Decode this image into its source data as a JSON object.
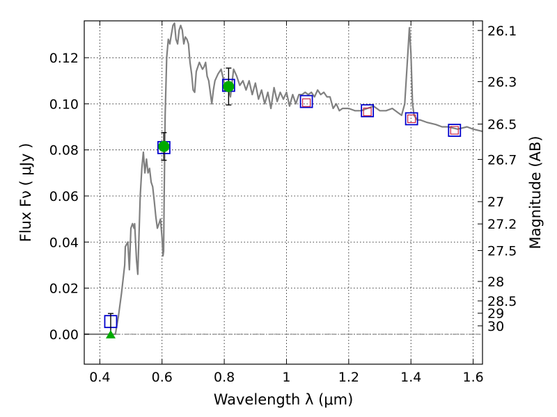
{
  "chart_data": {
    "type": "line",
    "xlabel": "Wavelength  λ (μm)",
    "ylabel": "Flux  Fν  ( μJy )",
    "y2label": "Magnitude (AB)",
    "xlim": [
      0.35,
      1.63
    ],
    "ylim": [
      -0.013,
      0.136
    ],
    "grid": true,
    "legend": "none",
    "x_ticks": [
      0.4,
      0.6,
      0.8,
      1.0,
      1.2,
      1.4,
      1.6
    ],
    "x_tick_labels": [
      "0.4",
      "0.6",
      "0.8",
      "1",
      "1.2",
      "1.4",
      "1.6"
    ],
    "y_ticks": [
      0.0,
      0.02,
      0.04,
      0.06,
      0.08,
      0.1,
      0.12
    ],
    "y_tick_labels": [
      "0.00",
      "0.02",
      "0.04",
      "0.06",
      "0.08",
      "0.10",
      "0.12"
    ],
    "mag_ticks": [
      26.1,
      26.3,
      26.5,
      26.7,
      27,
      27.2,
      27.5,
      28,
      28.5,
      29,
      30
    ],
    "mag_tick_labels": [
      "26.1",
      "26.3",
      "26.5",
      "26.7",
      "27",
      "27.2",
      "27.5",
      "28",
      "28.5",
      "29",
      "30"
    ],
    "series": [
      {
        "kind": "model_sed",
        "color": "#808080",
        "x": [
          0.35,
          0.45,
          0.46,
          0.47,
          0.48,
          0.482,
          0.49,
          0.495,
          0.5,
          0.505,
          0.51,
          0.512,
          0.518,
          0.522,
          0.53,
          0.535,
          0.54,
          0.545,
          0.55,
          0.555,
          0.56,
          0.565,
          0.57,
          0.575,
          0.58,
          0.585,
          0.59,
          0.595,
          0.6,
          0.603,
          0.605,
          0.607,
          0.61,
          0.615,
          0.62,
          0.625,
          0.63,
          0.635,
          0.64,
          0.645,
          0.65,
          0.655,
          0.66,
          0.665,
          0.67,
          0.675,
          0.68,
          0.685,
          0.69,
          0.695,
          0.7,
          0.705,
          0.71,
          0.72,
          0.73,
          0.735,
          0.74,
          0.745,
          0.75,
          0.755,
          0.76,
          0.765,
          0.77,
          0.78,
          0.79,
          0.8,
          0.81,
          0.82,
          0.83,
          0.84,
          0.85,
          0.86,
          0.87,
          0.88,
          0.89,
          0.9,
          0.91,
          0.92,
          0.93,
          0.94,
          0.95,
          0.96,
          0.97,
          0.98,
          0.99,
          1.0,
          1.01,
          1.02,
          1.03,
          1.04,
          1.05,
          1.06,
          1.07,
          1.08,
          1.09,
          1.1,
          1.11,
          1.12,
          1.13,
          1.14,
          1.15,
          1.16,
          1.17,
          1.18,
          1.2,
          1.22,
          1.24,
          1.26,
          1.28,
          1.3,
          1.32,
          1.34,
          1.36,
          1.37,
          1.38,
          1.39,
          1.395,
          1.4,
          1.405,
          1.41,
          1.42,
          1.43,
          1.45,
          1.48,
          1.5,
          1.52,
          1.55,
          1.58,
          1.6,
          1.63
        ],
        "y": [
          0.0,
          0.0,
          0.008,
          0.018,
          0.03,
          0.038,
          0.04,
          0.028,
          0.046,
          0.048,
          0.046,
          0.048,
          0.032,
          0.026,
          0.06,
          0.072,
          0.079,
          0.07,
          0.076,
          0.07,
          0.072,
          0.066,
          0.064,
          0.058,
          0.051,
          0.046,
          0.048,
          0.05,
          0.042,
          0.034,
          0.036,
          0.06,
          0.095,
          0.12,
          0.128,
          0.126,
          0.13,
          0.134,
          0.135,
          0.128,
          0.126,
          0.132,
          0.134,
          0.132,
          0.126,
          0.129,
          0.128,
          0.126,
          0.118,
          0.113,
          0.106,
          0.105,
          0.114,
          0.118,
          0.115,
          0.116,
          0.118,
          0.112,
          0.11,
          0.105,
          0.1,
          0.106,
          0.11,
          0.113,
          0.115,
          0.109,
          0.108,
          0.103,
          0.115,
          0.112,
          0.108,
          0.11,
          0.106,
          0.11,
          0.104,
          0.109,
          0.102,
          0.106,
          0.1,
          0.105,
          0.098,
          0.107,
          0.101,
          0.105,
          0.102,
          0.105,
          0.099,
          0.104,
          0.1,
          0.104,
          0.104,
          0.105,
          0.104,
          0.105,
          0.103,
          0.106,
          0.104,
          0.105,
          0.103,
          0.103,
          0.098,
          0.1,
          0.097,
          0.098,
          0.098,
          0.097,
          0.097,
          0.098,
          0.099,
          0.097,
          0.097,
          0.098,
          0.096,
          0.095,
          0.1,
          0.122,
          0.133,
          0.122,
          0.1,
          0.095,
          0.093,
          0.093,
          0.092,
          0.091,
          0.09,
          0.09,
          0.089,
          0.09,
          0.089,
          0.088
        ]
      },
      {
        "kind": "model_photometry",
        "marker": "open-square",
        "color": "#0000cc",
        "x": [
          0.435,
          0.606,
          0.814,
          1.064,
          1.26,
          1.402,
          1.54
        ],
        "y": [
          0.0055,
          0.081,
          0.108,
          0.101,
          0.097,
          0.0935,
          0.0885
        ]
      },
      {
        "kind": "synthetic_photometry",
        "marker": "small-open-square",
        "color": "#cc2244",
        "x": [
          1.064,
          1.26,
          1.402,
          1.54
        ],
        "y": [
          0.1005,
          0.0965,
          0.0935,
          0.0885
        ]
      },
      {
        "kind": "observed_detections",
        "marker": "filled-circle",
        "color": "#00aa00",
        "x": [
          0.606,
          0.814
        ],
        "y": [
          0.0815,
          0.1075
        ],
        "yerr": [
          0.006,
          0.008
        ]
      },
      {
        "kind": "observed_upper_limit",
        "marker": "filled-triangle",
        "color": "#00aa00",
        "x": [
          0.435
        ],
        "y": [
          0.0
        ],
        "yerr_upper": [
          0.009
        ]
      }
    ]
  }
}
